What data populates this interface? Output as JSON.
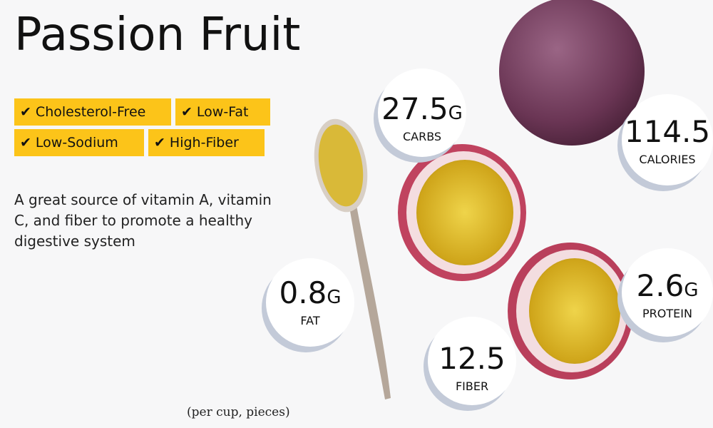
{
  "title": "Passion Fruit",
  "badges": [
    {
      "label": "Cholesterol-Free"
    },
    {
      "label": "Low-Fat"
    },
    {
      "label": "Low-Sodium"
    },
    {
      "label": "High-Fiber"
    }
  ],
  "check_icon": "✔",
  "description": "A great source of vitamin A, vitamin C, and fiber to promote a healthy digestive system",
  "note": "(per cup, pieces)",
  "nutrients": {
    "carbs": {
      "value": "27.5",
      "unit": "G",
      "label": "CARBS"
    },
    "calories": {
      "value": "114.5",
      "unit": "",
      "label": "CALORIES"
    },
    "fat": {
      "value": "0.8",
      "unit": "G",
      "label": "FAT"
    },
    "fiber": {
      "value": "12.5",
      "unit": "",
      "label": "FIBER"
    },
    "protein": {
      "value": "2.6",
      "unit": "G",
      "label": "PROTEIN"
    }
  },
  "colors": {
    "badge": "#fcc419",
    "fruit_skin": "#6e3a5a",
    "pulp": "#e8c21c"
  }
}
